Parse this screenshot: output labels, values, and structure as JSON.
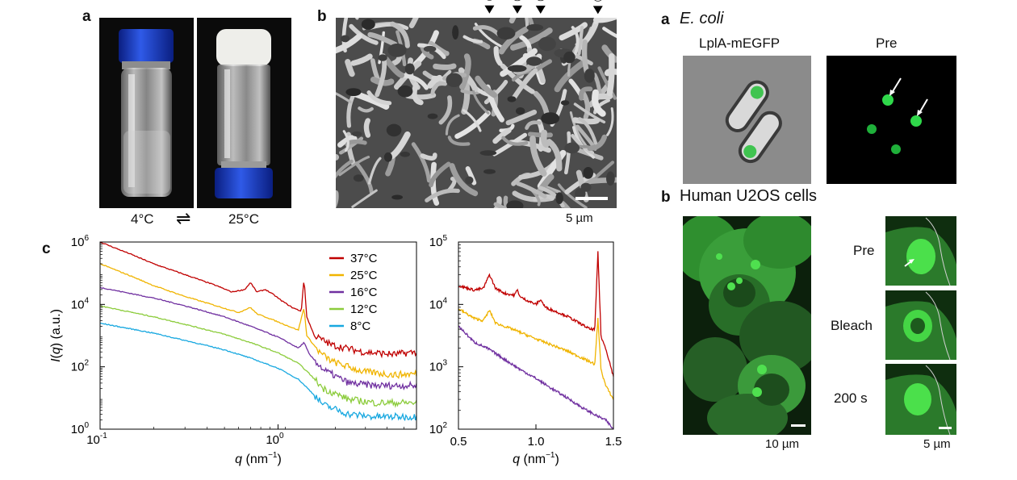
{
  "left_figure": {
    "panel_a": {
      "letter": "a",
      "temp_left": "4°C",
      "temp_right": "25°C",
      "equilibrium_symbol": "⇌"
    },
    "panel_b": {
      "letter": "b",
      "scale_bar": "5 µm"
    },
    "panel_c": {
      "letter": "c"
    }
  },
  "right_figure": {
    "panel_a": {
      "letter": "a",
      "title": "E. coli",
      "label_left": "LplA-mEGFP",
      "label_right": "Pre"
    },
    "panel_b": {
      "letter": "b",
      "title": "Human U2OS cells",
      "scale_big": "10 µm",
      "scale_small": "5 µm",
      "frames": [
        "Pre",
        "Bleach",
        "200 s"
      ]
    }
  },
  "chart_data": [
    {
      "type": "line",
      "x_scale": "log",
      "y_scale": "log",
      "xlabel": "q (nm⁻¹)",
      "ylabel": "I(q) (a.u.)",
      "xlim": [
        0.1,
        6
      ],
      "ylim": [
        1,
        1000000
      ],
      "x_ticks": [
        "10⁻¹",
        "10⁰"
      ],
      "y_ticks": [
        "10⁰",
        "10²",
        "10⁴",
        "10⁶"
      ],
      "legend_position": "top-right",
      "series": [
        {
          "name": "37°C",
          "color": "#c00000",
          "points": [
            [
              0.1,
              1000000
            ],
            [
              0.15,
              400000
            ],
            [
              0.2,
              200000
            ],
            [
              0.3,
              90000
            ],
            [
              0.45,
              40000
            ],
            [
              0.55,
              25000
            ],
            [
              0.65,
              30000
            ],
            [
              0.7,
              50000
            ],
            [
              0.76,
              25000
            ],
            [
              0.85,
              30000
            ],
            [
              0.95,
              20000
            ],
            [
              1.05,
              13000
            ],
            [
              1.2,
              8000
            ],
            [
              1.35,
              6000
            ],
            [
              1.4,
              70000
            ],
            [
              1.45,
              4000
            ],
            [
              1.6,
              1000
            ],
            [
              2,
              500
            ],
            [
              3,
              300
            ],
            [
              4.5,
              250
            ],
            [
              6,
              300
            ]
          ]
        },
        {
          "name": "25°C",
          "color": "#f0b400",
          "points": [
            [
              0.1,
              200000
            ],
            [
              0.15,
              80000
            ],
            [
              0.2,
              40000
            ],
            [
              0.3,
              18000
            ],
            [
              0.45,
              9000
            ],
            [
              0.6,
              5500
            ],
            [
              0.7,
              8000
            ],
            [
              0.76,
              5000
            ],
            [
              0.9,
              3500
            ],
            [
              1.1,
              2200
            ],
            [
              1.3,
              1500
            ],
            [
              1.4,
              8000
            ],
            [
              1.45,
              1000
            ],
            [
              1.7,
              300
            ],
            [
              2,
              150
            ],
            [
              3,
              70
            ],
            [
              4.5,
              55
            ],
            [
              6,
              60
            ]
          ]
        },
        {
          "name": "16°C",
          "color": "#7030a0",
          "points": [
            [
              0.1,
              35000
            ],
            [
              0.2,
              16000
            ],
            [
              0.3,
              9000
            ],
            [
              0.5,
              4000
            ],
            [
              0.7,
              2000
            ],
            [
              1,
              900
            ],
            [
              1.3,
              400
            ],
            [
              1.4,
              600
            ],
            [
              1.5,
              250
            ],
            [
              1.8,
              80
            ],
            [
              2.5,
              30
            ],
            [
              3.5,
              25
            ],
            [
              6,
              25
            ]
          ]
        },
        {
          "name": "12°C",
          "color": "#8ccc3c",
          "points": [
            [
              0.1,
              9000
            ],
            [
              0.2,
              4000
            ],
            [
              0.3,
              2300
            ],
            [
              0.5,
              1100
            ],
            [
              0.7,
              600
            ],
            [
              1,
              280
            ],
            [
              1.3,
              130
            ],
            [
              1.5,
              60
            ],
            [
              1.8,
              20
            ],
            [
              2.5,
              9
            ],
            [
              3.5,
              7
            ],
            [
              6,
              7
            ]
          ]
        },
        {
          "name": "8°C",
          "color": "#18a8e0",
          "points": [
            [
              0.1,
              2500
            ],
            [
              0.2,
              1200
            ],
            [
              0.3,
              700
            ],
            [
              0.5,
              350
            ],
            [
              0.7,
              190
            ],
            [
              1,
              90
            ],
            [
              1.3,
              40
            ],
            [
              1.5,
              18
            ],
            [
              1.8,
              6
            ],
            [
              2.5,
              3
            ],
            [
              3.5,
              2.5
            ],
            [
              6,
              2.5
            ]
          ]
        }
      ]
    },
    {
      "type": "line",
      "x_scale": "linear",
      "y_scale": "log",
      "xlabel": "q (nm⁻¹)",
      "xlim": [
        0.5,
        1.5
      ],
      "ylim": [
        100,
        100000
      ],
      "x_ticks": [
        "0.5",
        "1.0",
        "1.5"
      ],
      "y_ticks": [
        "10²",
        "10³",
        "10⁴",
        "10⁵"
      ],
      "annotations": [
        {
          "label": "①",
          "x": 0.7
        },
        {
          "label": "②",
          "x": 0.88
        },
        {
          "label": "③",
          "x": 1.03
        },
        {
          "label": "④",
          "x": 1.4
        }
      ],
      "series": [
        {
          "name": "37°C",
          "color": "#c00000",
          "points": [
            [
              0.5,
              20000
            ],
            [
              0.6,
              17000
            ],
            [
              0.66,
              18000
            ],
            [
              0.7,
              30000
            ],
            [
              0.74,
              18000
            ],
            [
              0.8,
              15000
            ],
            [
              0.86,
              14000
            ],
            [
              0.88,
              17000
            ],
            [
              0.9,
              13000
            ],
            [
              1.0,
              10000
            ],
            [
              1.03,
              12000
            ],
            [
              1.06,
              9000
            ],
            [
              1.2,
              6500
            ],
            [
              1.35,
              4000
            ],
            [
              1.38,
              4000
            ],
            [
              1.4,
              70000
            ],
            [
              1.42,
              3000
            ],
            [
              1.45,
              2000
            ],
            [
              1.5,
              700
            ]
          ]
        },
        {
          "name": "25°C",
          "color": "#f0b400",
          "points": [
            [
              0.5,
              8500
            ],
            [
              0.6,
              6000
            ],
            [
              0.66,
              5500
            ],
            [
              0.7,
              8000
            ],
            [
              0.74,
              5000
            ],
            [
              0.85,
              4000
            ],
            [
              1.0,
              2800
            ],
            [
              1.2,
              1800
            ],
            [
              1.35,
              1200
            ],
            [
              1.38,
              1100
            ],
            [
              1.4,
              6000
            ],
            [
              1.42,
              900
            ],
            [
              1.45,
              500
            ],
            [
              1.5,
              300
            ]
          ]
        },
        {
          "name": "16°C",
          "color": "#7030a0",
          "points": [
            [
              0.5,
              4500
            ],
            [
              0.6,
              2500
            ],
            [
              0.7,
              1900
            ],
            [
              0.8,
              1300
            ],
            [
              0.9,
              900
            ],
            [
              1.0,
              650
            ],
            [
              1.1,
              450
            ],
            [
              1.2,
              320
            ],
            [
              1.3,
              220
            ],
            [
              1.4,
              160
            ],
            [
              1.45,
              140
            ],
            [
              1.5,
              100
            ]
          ]
        }
      ]
    }
  ]
}
